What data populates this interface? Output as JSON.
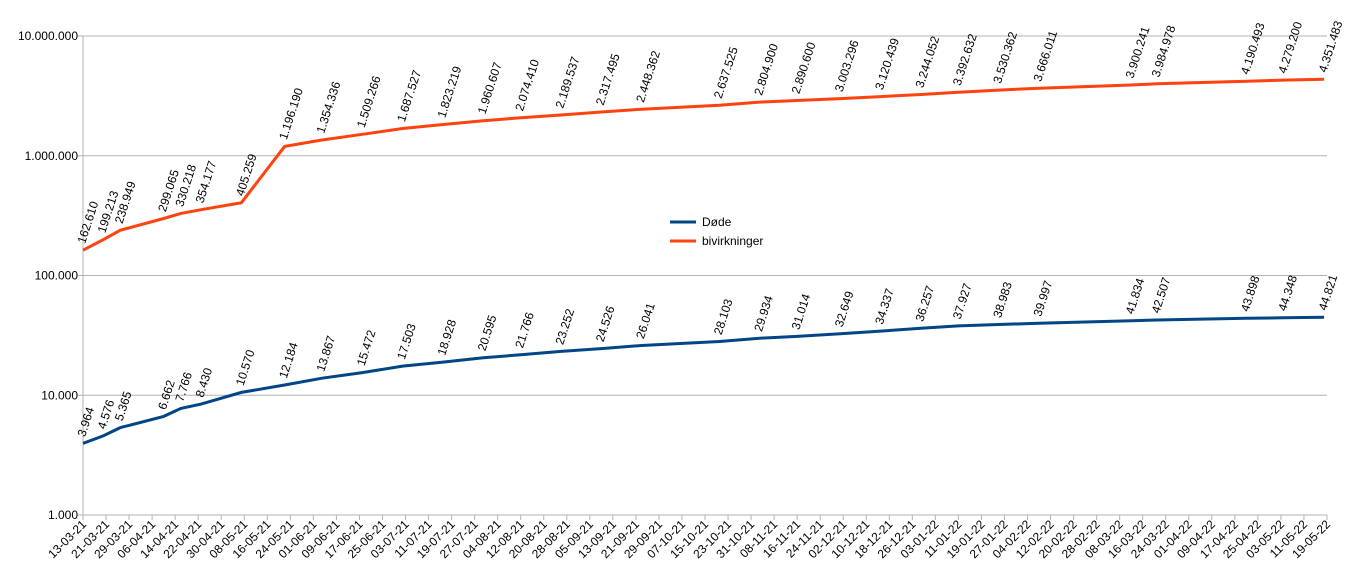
{
  "chart_data": {
    "type": "line",
    "x": [
      "13-03-21",
      "20-03-21",
      "26-03-21",
      "10-04-21",
      "16-04-21",
      "23-04-21",
      "07-05-21",
      "22-05-21",
      "04-06-21",
      "18-06-21",
      "02-07-21",
      "16-07-21",
      "30-07-21",
      "12-08-21",
      "26-08-21",
      "09-09-21",
      "23-09-21",
      "20-10-21",
      "03-11-21",
      "16-11-21",
      "01-12-21",
      "15-12-21",
      "29-12-21",
      "11-01-22",
      "25-01-22",
      "08-02-22",
      "12-03-22",
      "21-03-22",
      "21-04-22",
      "04-05-22",
      "18-05-22"
    ],
    "series": [
      {
        "name": "Døde",
        "color": "#004586",
        "values": [
          3964,
          4576,
          5365,
          6662,
          7766,
          8430,
          10570,
          12184,
          13867,
          15472,
          17503,
          18928,
          20595,
          21766,
          23252,
          24526,
          26041,
          28103,
          29934,
          31014,
          32649,
          34337,
          36257,
          37927,
          38983,
          39997,
          41834,
          42507,
          43898,
          44348,
          44821
        ],
        "value_labels": [
          "3.964",
          "4.576",
          "5.365",
          "6.662",
          "7.766",
          "8.430",
          "10.570",
          "12.184",
          "13.867",
          "15.472",
          "17.503",
          "18.928",
          "20.595",
          "21.766",
          "23.252",
          "24.526",
          "26.041",
          "28.103",
          "29.934",
          "31.014",
          "32.649",
          "34.337",
          "36.257",
          "37.927",
          "38.983",
          "39.997",
          "41.834",
          "42.507",
          "43.898",
          "44.348",
          "44.821"
        ]
      },
      {
        "name": "bivirkninger",
        "color": "#ff420e",
        "values": [
          162610,
          199213,
          238949,
          299065,
          330218,
          354177,
          405259,
          1196190,
          1354336,
          1509266,
          1687527,
          1823219,
          1960607,
          2074410,
          2189537,
          2317495,
          2448362,
          2637525,
          2804900,
          2890600,
          3003296,
          3120439,
          3244052,
          3392632,
          3530362,
          3666011,
          3900241,
          3984978,
          4190493,
          4279200,
          4351483
        ],
        "value_labels": [
          "162.610",
          "199.213",
          "238.949",
          "299.065",
          "330.218",
          "354.177",
          "405.259",
          "1.196.190",
          "1.354.336",
          "1.509.266",
          "1.687.527",
          "1.823.219",
          "1.960.607",
          "2.074.410",
          "2.189.537",
          "2.317.495",
          "2.448.362",
          "2.637.525",
          "2.804.900",
          "2.890.600",
          "3.003.296",
          "3.120.439",
          "3.244.052",
          "3.392.632",
          "3.530.362",
          "3.666.011",
          "3.900.241",
          "3.984.978",
          "4.190.493",
          "4.279.200",
          "4.351.483"
        ]
      }
    ],
    "xlim": [
      "13-03-21",
      "19-05-22"
    ],
    "xticks": [
      "13-03-21",
      "21-03-21",
      "29-03-21",
      "06-04-21",
      "14-04-21",
      "22-04-21",
      "30-04-21",
      "08-05-21",
      "16-05-21",
      "24-05-21",
      "01-06-21",
      "09-06-21",
      "17-06-21",
      "25-06-21",
      "03-07-21",
      "11-07-21",
      "19-07-21",
      "27-07-21",
      "04-08-21",
      "12-08-21",
      "20-08-21",
      "28-08-21",
      "05-09-21",
      "13-09-21",
      "21-09-21",
      "29-09-21",
      "07-10-21",
      "15-10-21",
      "23-10-21",
      "31-10-21",
      "08-11-21",
      "16-11-21",
      "24-11-21",
      "02-12-21",
      "10-12-21",
      "18-12-21",
      "26-12-21",
      "03-01-22",
      "11-01-22",
      "19-01-22",
      "27-01-22",
      "04-02-22",
      "12-02-22",
      "20-02-22",
      "28-02-22",
      "08-03-22",
      "16-03-22",
      "24-03-22",
      "01-04-22",
      "09-04-22",
      "17-04-22",
      "25-04-22",
      "03-05-22",
      "11-05-22",
      "19-05-22"
    ],
    "ylim": [
      1000,
      10000000
    ],
    "yticks": [
      {
        "value": 1000,
        "label": "1.000"
      },
      {
        "value": 10000,
        "label": "10.000"
      },
      {
        "value": 100000,
        "label": "100.000"
      },
      {
        "value": 1000000,
        "label": "1.000.000"
      },
      {
        "value": 10000000,
        "label": "10.000.000"
      }
    ],
    "log_y": true,
    "grid": true,
    "legend": "center"
  }
}
